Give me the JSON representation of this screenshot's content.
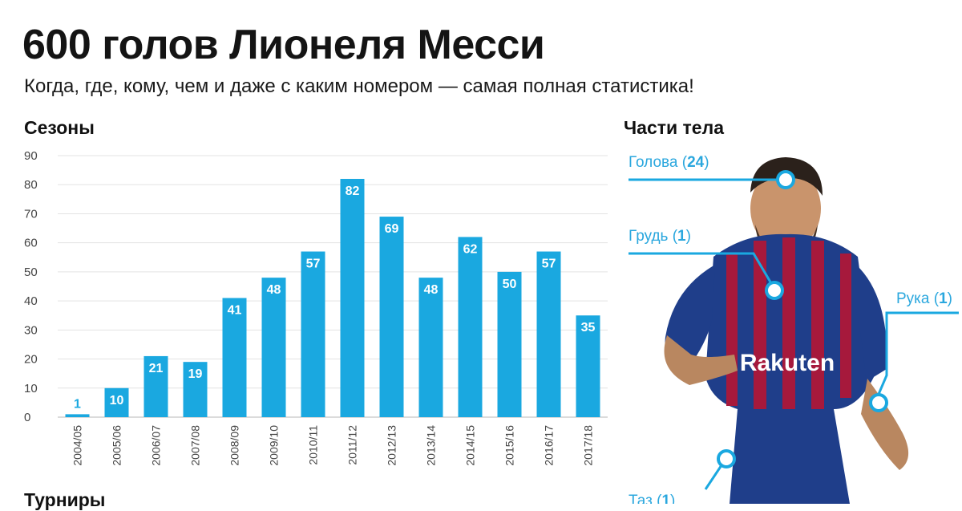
{
  "header": {
    "title": "600 голов Лионеля Месси",
    "subtitle": "Когда, где, кому, чем и даже с каким номером — самая полная статистика!"
  },
  "sections": {
    "seasons": "Сезоны",
    "body_parts": "Части тела",
    "tournaments": "Турниры"
  },
  "chart_data": {
    "type": "bar",
    "categories": [
      "2004/05",
      "2005/06",
      "2006/07",
      "2007/08",
      "2008/09",
      "2009/10",
      "2010/11",
      "2011/12",
      "2012/13",
      "2013/14",
      "2014/15",
      "2015/16",
      "2016/17",
      "2017/18"
    ],
    "values": [
      1,
      10,
      21,
      19,
      41,
      48,
      57,
      82,
      69,
      48,
      62,
      50,
      57,
      35
    ],
    "title": "Сезоны",
    "xlabel": "",
    "ylabel": "",
    "ylim": [
      0,
      90
    ],
    "yticks": [
      0,
      10,
      20,
      30,
      40,
      50,
      60,
      70,
      80,
      90
    ],
    "grid": true,
    "data_labels": true
  },
  "body_parts": [
    {
      "name": "Голова",
      "open": " (",
      "value": "24",
      "close": ")"
    },
    {
      "name": "Грудь",
      "open": " (",
      "value": "1",
      "close": ")"
    },
    {
      "name": "Рука",
      "open": " (",
      "value": "1",
      "close": ")"
    },
    {
      "name": "Таз",
      "open": " (",
      "value": "1",
      "close": ")"
    }
  ],
  "colors": {
    "bar": "#1aa8e0",
    "grid": "#e3e3e3",
    "label_inside": "#ffffff",
    "label_outside": "#1aa8e0",
    "axis_text": "#444444",
    "jersey_blue": "#1f3e8a",
    "jersey_red": "#a6193c"
  }
}
